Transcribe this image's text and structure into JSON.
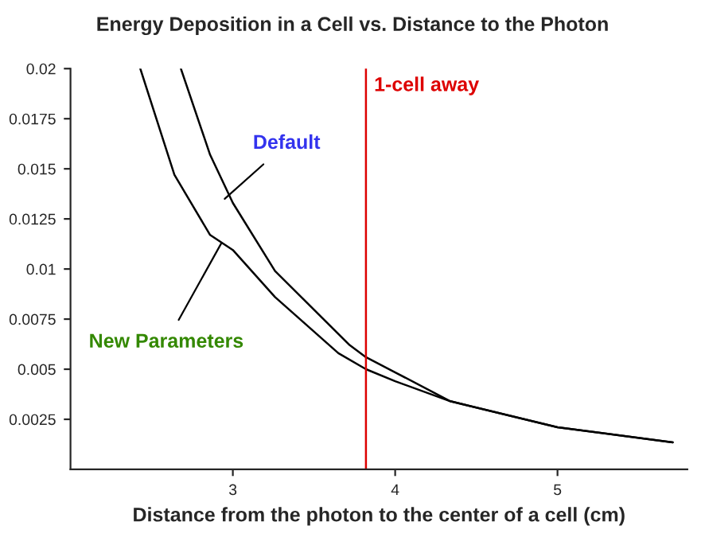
{
  "chart_data": {
    "type": "line",
    "title": "Energy Deposition in a Cell vs. Distance to the Photon",
    "xlabel": "Distance from the photon to the center of a cell (cm)",
    "series": [
      {
        "color": "#000000",
        "x": [
          2.68,
          2.86,
          3.0,
          3.26,
          3.72,
          3.82,
          4.01,
          4.34,
          5.0,
          5.71
        ],
        "values": [
          0.02,
          0.0157,
          0.0133,
          0.0099,
          0.0062,
          0.0056,
          0.0048,
          0.0034,
          0.0021,
          0.00135
        ]
      },
      {
        "color": "#000000",
        "x": [
          2.43,
          2.64,
          2.86,
          3.0,
          3.26,
          3.65,
          3.82,
          4.0,
          4.34,
          5.0,
          5.71
        ],
        "values": [
          0.02,
          0.0147,
          0.0117,
          0.01095,
          0.0086,
          0.0058,
          0.005,
          0.0044,
          0.0034,
          0.0021,
          0.00135
        ]
      }
    ],
    "annotations": [
      {
        "text": "Default",
        "x": 2.95,
        "y": 0.0135
      },
      {
        "text": "New Parameters",
        "x": 2.93,
        "y": 0.0113
      }
    ],
    "ref_lines": [
      {
        "axis": "x",
        "value": 3.82,
        "label": "1-cell away",
        "color": "#dd0000"
      }
    ],
    "xlim": [
      2.0,
      5.8
    ],
    "ylim": [
      0,
      0.02
    ],
    "xticks": [
      3,
      4,
      5
    ],
    "yticks": [
      0.0025,
      0.005,
      0.0075,
      0.01,
      0.0125,
      0.015,
      0.0175,
      0.02
    ],
    "grid": false,
    "legend": false,
    "marker": "none",
    "line_style": "solid"
  }
}
